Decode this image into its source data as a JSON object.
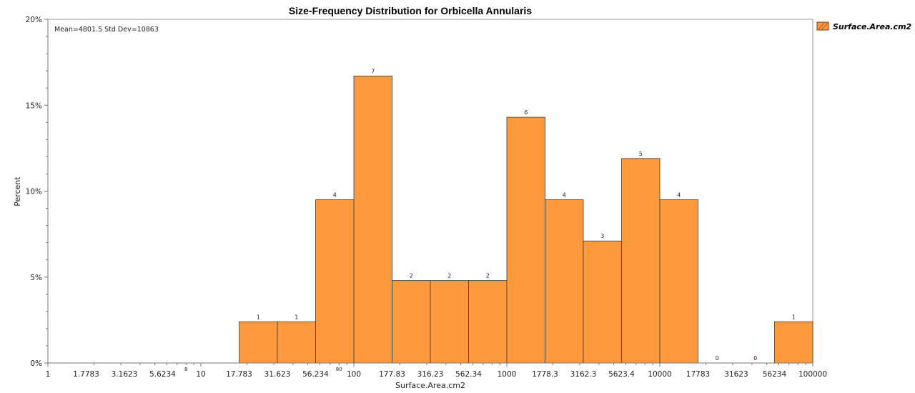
{
  "chart_data": {
    "type": "bar",
    "title": "Size-Frequency Distribution for Orbicella Annularis",
    "xlabel": "Surface.Area.cm2",
    "ylabel": "Percent",
    "x_scale": "log",
    "xlim": [
      1,
      100000
    ],
    "ylim": [
      0,
      20
    ],
    "y_ticks": [
      "0%",
      "5%",
      "10%",
      "15%",
      "20%"
    ],
    "x_tick_labels": [
      "1",
      "1.7783",
      "3.1623",
      "5.6234",
      "10",
      "17.783",
      "31.623",
      "56.234",
      "100",
      "177.83",
      "316.23",
      "562.34",
      "1000",
      "1778.3",
      "3162.3",
      "5623.4",
      "10000",
      "17783",
      "31623",
      "56234",
      "100000"
    ],
    "x_minor_labels": [
      "8",
      "80"
    ],
    "stats_annotation": "Mean=4801.5  Std Dev=10863",
    "legend": {
      "position": "top-right",
      "entries": [
        "Surface.Area.cm2"
      ]
    },
    "bar_color": "#ff9a3c",
    "series": [
      {
        "name": "Surface.Area.cm2",
        "bins": [
          {
            "from": 17.783,
            "to": 31.623,
            "percent": 2.4,
            "count": 1
          },
          {
            "from": 31.623,
            "to": 56.234,
            "percent": 2.4,
            "count": 1
          },
          {
            "from": 56.234,
            "to": 100,
            "percent": 9.5,
            "count": 4
          },
          {
            "from": 100,
            "to": 177.83,
            "percent": 16.7,
            "count": 7
          },
          {
            "from": 177.83,
            "to": 316.23,
            "percent": 4.8,
            "count": 2
          },
          {
            "from": 316.23,
            "to": 562.34,
            "percent": 4.8,
            "count": 2
          },
          {
            "from": 562.34,
            "to": 1000,
            "percent": 4.8,
            "count": 2
          },
          {
            "from": 1000,
            "to": 1778.3,
            "percent": 14.3,
            "count": 6
          },
          {
            "from": 1778.3,
            "to": 3162.3,
            "percent": 9.5,
            "count": 4
          },
          {
            "from": 3162.3,
            "to": 5623.4,
            "percent": 7.1,
            "count": 3
          },
          {
            "from": 5623.4,
            "to": 10000,
            "percent": 11.9,
            "count": 5
          },
          {
            "from": 10000,
            "to": 17783,
            "percent": 9.5,
            "count": 4
          },
          {
            "from": 17783,
            "to": 31623,
            "percent": 0,
            "count": 0
          },
          {
            "from": 31623,
            "to": 56234,
            "percent": 0,
            "count": 0
          },
          {
            "from": 56234,
            "to": 100000,
            "percent": 2.4,
            "count": 1
          }
        ]
      }
    ]
  }
}
